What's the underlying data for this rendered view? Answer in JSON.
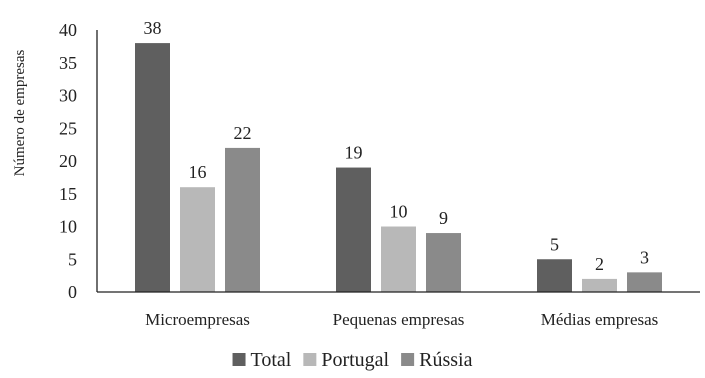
{
  "chart_data": {
    "type": "bar",
    "categories": [
      "Microempresas",
      "Pequenas empresas",
      "Médias empresas"
    ],
    "series": [
      {
        "name": "Total",
        "values": [
          38,
          19,
          5
        ],
        "color": "#5f5f5f"
      },
      {
        "name": "Portugal",
        "values": [
          16,
          10,
          2
        ],
        "color": "#b8b8b8"
      },
      {
        "name": "Rússia",
        "values": [
          22,
          9,
          3
        ],
        "color": "#8a8a8a"
      }
    ],
    "ylabel": "Número de empresas",
    "xlabel": "",
    "ylim": [
      0,
      40
    ],
    "yticks": [
      "0",
      "5",
      "10",
      "15",
      "20",
      "25",
      "30",
      "35",
      "40"
    ],
    "grid": false,
    "legend_position": "bottom",
    "data_labels": true
  }
}
